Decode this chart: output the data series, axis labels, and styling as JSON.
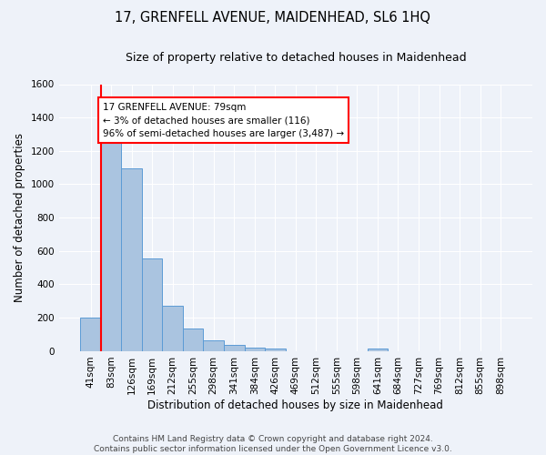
{
  "title": "17, GRENFELL AVENUE, MAIDENHEAD, SL6 1HQ",
  "subtitle": "Size of property relative to detached houses in Maidenhead",
  "xlabel": "Distribution of detached houses by size in Maidenhead",
  "ylabel": "Number of detached properties",
  "footer_line1": "Contains HM Land Registry data © Crown copyright and database right 2024.",
  "footer_line2": "Contains public sector information licensed under the Open Government Licence v3.0.",
  "bar_labels": [
    "41sqm",
    "83sqm",
    "126sqm",
    "169sqm",
    "212sqm",
    "255sqm",
    "298sqm",
    "341sqm",
    "384sqm",
    "426sqm",
    "469sqm",
    "512sqm",
    "555sqm",
    "598sqm",
    "641sqm",
    "684sqm",
    "727sqm",
    "769sqm",
    "812sqm",
    "855sqm",
    "898sqm"
  ],
  "bar_values": [
    197,
    1270,
    1097,
    554,
    270,
    134,
    63,
    35,
    18,
    13,
    0,
    0,
    0,
    0,
    13,
    0,
    0,
    0,
    0,
    0,
    0
  ],
  "bar_color": "#aac4e0",
  "bar_edge_color": "#5b9bd5",
  "ylim": [
    0,
    1600
  ],
  "yticks": [
    0,
    200,
    400,
    600,
    800,
    1000,
    1200,
    1400,
    1600
  ],
  "vline_x": 0.5,
  "annotation_text": "17 GRENFELL AVENUE: 79sqm\n← 3% of detached houses are smaller (116)\n96% of semi-detached houses are larger (3,487) →",
  "annotation_box_color": "white",
  "annotation_box_edge_color": "red",
  "vline_color": "red",
  "bg_color": "#eef2f9",
  "grid_color": "white",
  "title_fontsize": 10.5,
  "subtitle_fontsize": 9,
  "axis_label_fontsize": 8.5,
  "tick_fontsize": 7.5,
  "annotation_fontsize": 7.5,
  "footer_fontsize": 6.5
}
